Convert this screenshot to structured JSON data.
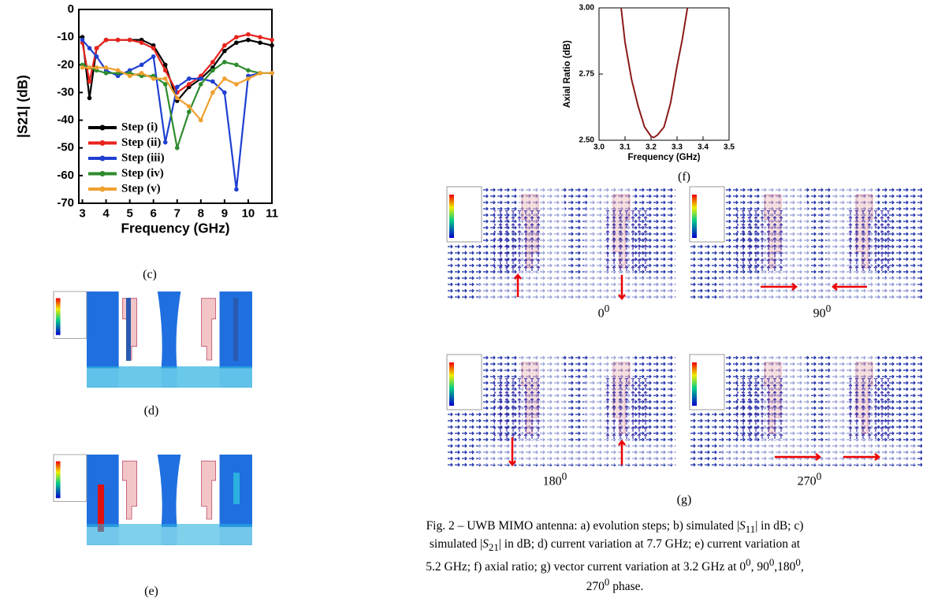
{
  "chart_data": [
    {
      "type": "line",
      "xlabel": "Frequency (GHz)",
      "ylabel": "|S21| (dB)",
      "x": [
        3,
        3.3,
        3.6,
        4,
        4.5,
        5,
        5.5,
        6,
        6.5,
        7,
        7.5,
        8,
        8.5,
        9,
        9.5,
        10,
        10.5,
        11
      ],
      "series": [
        {
          "name": "Step (i)",
          "color": "#000000",
          "values": [
            -10,
            -32,
            -14,
            -11,
            -11,
            -11,
            -11,
            -13,
            -20,
            -33,
            -28,
            -25,
            -21,
            -15,
            -12,
            -11,
            -12,
            -13
          ]
        },
        {
          "name": "Step (ii)",
          "color": "#e8231c",
          "values": [
            -12,
            -26,
            -14,
            -11,
            -11,
            -11,
            -12,
            -14,
            -22,
            -30,
            -27,
            -24,
            -19,
            -13,
            -10,
            -9,
            -10,
            -11
          ]
        },
        {
          "name": "Step (iii)",
          "color": "#1f3fd1",
          "values": [
            -11,
            -14,
            -17,
            -22,
            -24,
            -22,
            -20,
            -17,
            -48,
            -28,
            -25,
            -25,
            -26,
            -30,
            -65,
            -24,
            -23,
            -23
          ]
        },
        {
          "name": "Step (iv)",
          "color": "#2e8b2e",
          "values": [
            -20,
            -21,
            -22,
            -23,
            -23,
            -23,
            -24,
            -24,
            -27,
            -50,
            -37,
            -27,
            -22,
            -19,
            -20,
            -22,
            -23,
            -23
          ]
        },
        {
          "name": "Step (v)",
          "color": "#f0a030",
          "values": [
            -21,
            -21,
            -21,
            -21,
            -22,
            -24,
            -23,
            -25,
            -25,
            -32,
            -35,
            -40,
            -30,
            -25,
            -27,
            -25,
            -23,
            -23
          ]
        }
      ],
      "xlim": [
        2.85,
        11
      ],
      "ylim": [
        -70,
        0
      ],
      "xticks": [
        3,
        4,
        5,
        6,
        7,
        8,
        9,
        10,
        11
      ],
      "yticks": [
        0,
        -10,
        -20,
        -30,
        -40,
        -50,
        -60,
        -70
      ],
      "marker": true,
      "legend": "lower left"
    },
    {
      "type": "line",
      "xlabel": "Frequency (GHz)",
      "ylabel": "Axial Ratio (dB)",
      "x": [
        3.085,
        3.1,
        3.125,
        3.15,
        3.175,
        3.2,
        3.21,
        3.225,
        3.25,
        3.275,
        3.3,
        3.32,
        3.34
      ],
      "values": [
        3.0,
        2.87,
        2.73,
        2.63,
        2.55,
        2.515,
        2.51,
        2.52,
        2.55,
        2.64,
        2.78,
        2.88,
        3.0
      ],
      "color": "#8b1a1a",
      "xlim": [
        3.0,
        3.5
      ],
      "ylim": [
        2.5,
        3.0
      ],
      "xticks": [
        {
          "value": 3,
          "label": "3.0"
        },
        3.1,
        3.2,
        3.3,
        3.4,
        3.5
      ],
      "yticks": [
        {
          "value": 2.5,
          "label": "2.50"
        },
        2.75,
        {
          "value": 3,
          "label": "3.00"
        }
      ],
      "marker": false
    }
  ],
  "panel_labels": [
    "(c)",
    "(d)",
    "(e)",
    "(f)",
    "(g)"
  ],
  "phase_labels": [
    {
      "base": "0",
      "sup": "0"
    },
    {
      "base": "90",
      "sup": "0"
    },
    {
      "base": "180",
      "sup": "0"
    },
    {
      "base": "270",
      "sup": "0"
    }
  ],
  "caption": {
    "runs": [
      "Fig. 2 – UWB MIMO antenna: a) evolution steps; b) simulated |",
      "S",
      "11",
      "| in dB; c) simulated |",
      "S",
      "21",
      "| in dB; d) current variation at 7.7 GHz; e) current variation at 5.2 GHz; f) axial ratio; g) vector current variation at 3.2 GHz at 0",
      "0",
      ", 90",
      "0",
      ",180",
      "0",
      ", 270",
      "0",
      " phase."
    ]
  }
}
